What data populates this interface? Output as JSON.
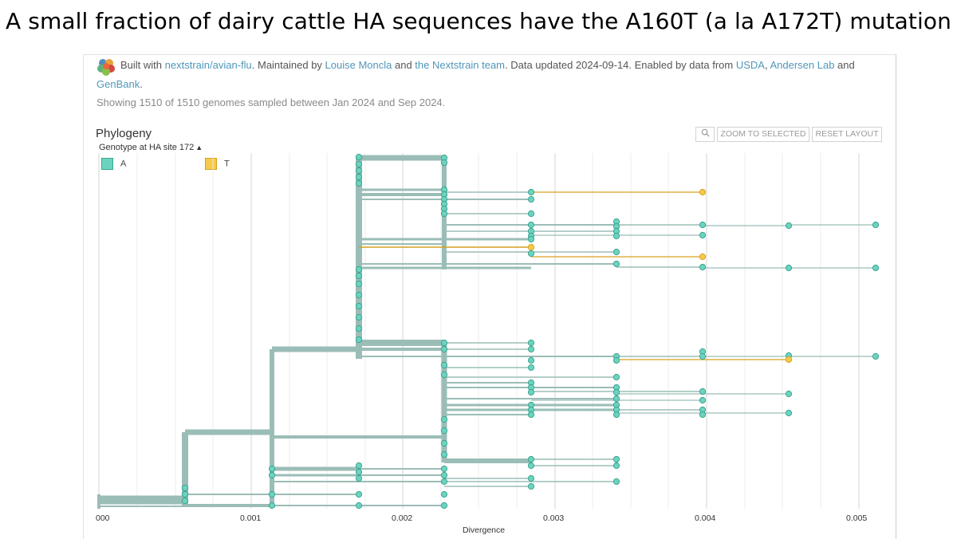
{
  "slide": {
    "title": "A small fraction of dairy cattle HA sequences have the A160T (a la A172T) mutation"
  },
  "header": {
    "built_with_prefix": "Built with ",
    "built_with_link": "nextstrain/avian-flu",
    "maintained_by": ". Maintained by ",
    "maintainer_1": "Louise Moncla",
    "and_1": " and ",
    "maintainer_2": "the Nextstrain team",
    "data_updated": ". Data updated 2024-09-14. Enabled by data from ",
    "source_1": "USDA",
    "comma": ", ",
    "source_2": "Andersen Lab",
    "and_2": " and",
    "source_3": "GenBank",
    "period": ".",
    "showing": "Showing 1510 of 1510 genomes sampled between Jan 2024 and Sep 2024."
  },
  "panel": {
    "title": "Phylogeny",
    "zoom_to_selected": "ZOOM TO SELECTED",
    "reset_layout": "RESET LAYOUT",
    "search_icon": "magnifier-icon"
  },
  "legend": {
    "title": "Genotype at HA site 172",
    "caret_icon": "chevron-up-icon",
    "items": [
      {
        "label": "A",
        "color": "#6dd3c1"
      },
      {
        "label": "T",
        "color": "#f6c94a"
      }
    ]
  },
  "axis": {
    "label": "Divergence",
    "ticks": [
      "000",
      "0.001",
      "0.002",
      "0.003",
      "0.004",
      "0.005"
    ]
  },
  "colors": {
    "branch": "#9bbdb7",
    "branch_dark": "#78a9a2",
    "tip_A": "#6dd3c1",
    "tip_A_stroke": "#3aa58e",
    "tip_T": "#f6c94a",
    "tip_T_stroke": "#d6a21e",
    "grid": "#dedede"
  }
}
